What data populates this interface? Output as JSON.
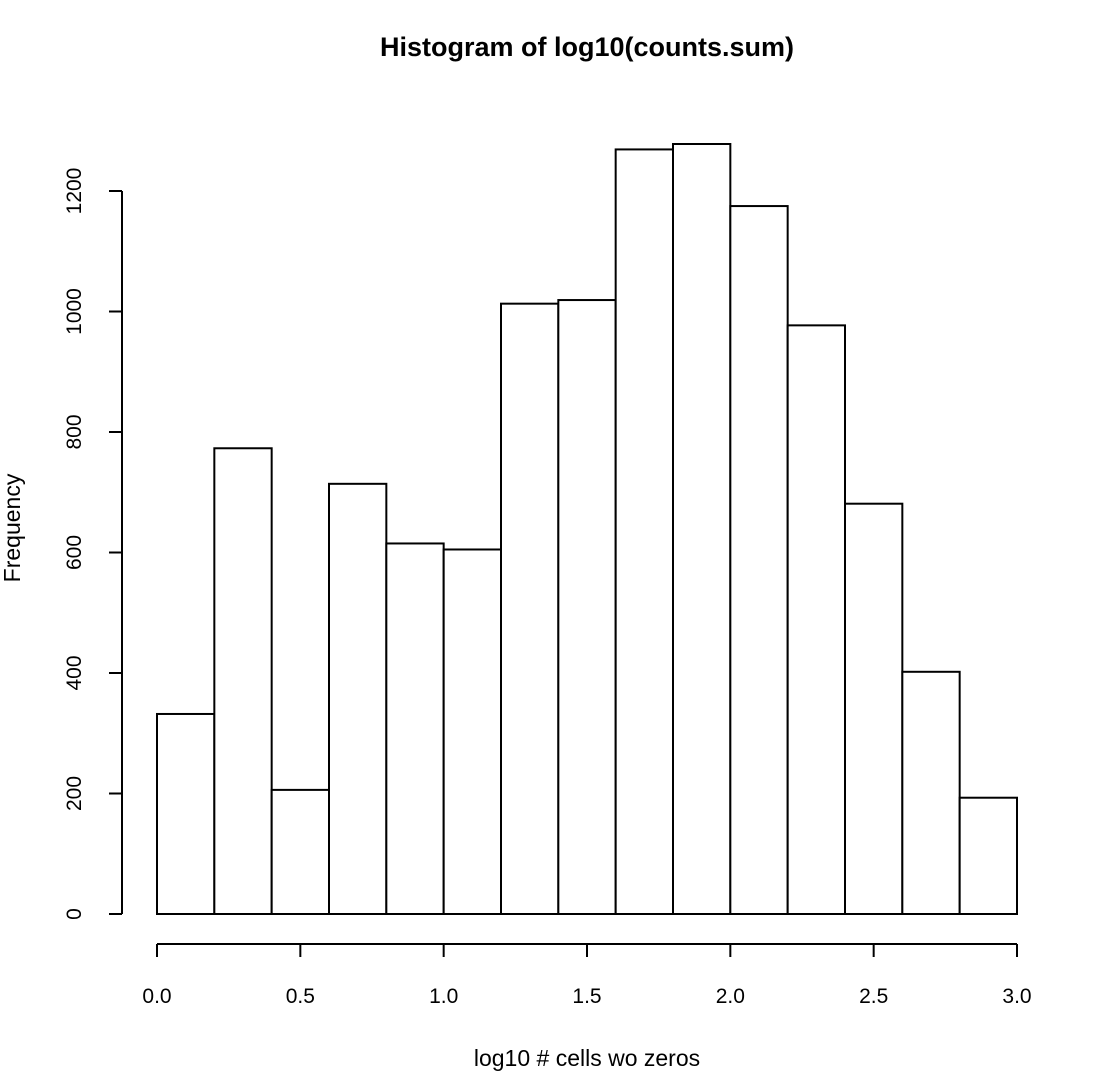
{
  "chart_data": {
    "type": "bar",
    "title": "Histogram of log10(counts.sum)",
    "xlabel": "log10 # cells wo zeros",
    "ylabel": "Frequency",
    "bin_edges": [
      0.0,
      0.2,
      0.4,
      0.6,
      0.8,
      1.0,
      1.2,
      1.4,
      1.6,
      1.8,
      2.0,
      2.2,
      2.4,
      2.6,
      2.8,
      3.0
    ],
    "values": [
      332,
      773,
      206,
      714,
      615,
      605,
      1013,
      1019,
      1269,
      1278,
      1175,
      977,
      681,
      402,
      193
    ],
    "xlim": [
      0.0,
      3.0
    ],
    "ylim": [
      0,
      1280
    ],
    "x_ticks": [
      0.0,
      0.5,
      1.0,
      1.5,
      2.0,
      2.5,
      3.0
    ],
    "x_tick_labels": [
      "0.0",
      "0.5",
      "1.0",
      "1.5",
      "2.0",
      "2.5",
      "3.0"
    ],
    "y_ticks": [
      0,
      200,
      400,
      600,
      800,
      1000,
      1200
    ],
    "y_tick_labels": [
      "0",
      "200",
      "400",
      "600",
      "800",
      "1000",
      "1200"
    ],
    "bar_fill": "#ffffff",
    "bar_stroke": "#000000",
    "grid": false,
    "legend": "none"
  }
}
